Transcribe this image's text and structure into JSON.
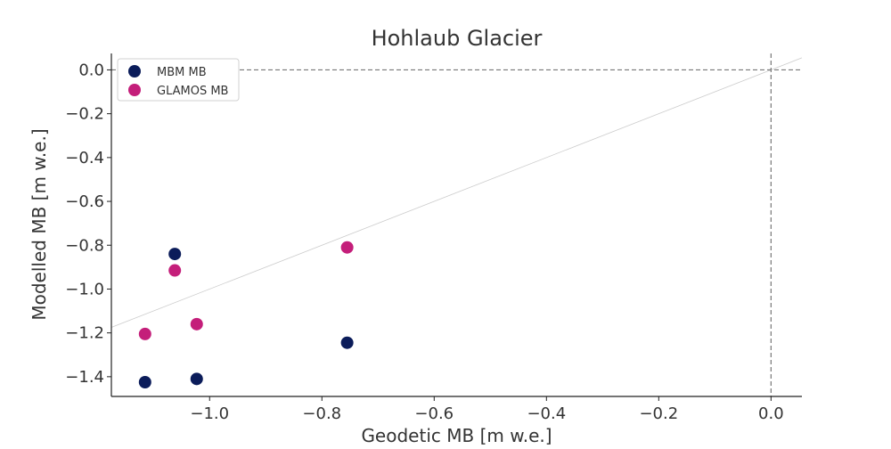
{
  "chart_data": {
    "type": "scatter",
    "title": "Hohlaub Glacier",
    "xlabel": "Geodetic MB [m w.e.]",
    "ylabel": "Modelled MB [m w.e.]",
    "xlim": [
      -1.175,
      0.055
    ],
    "ylim": [
      -1.49,
      0.075
    ],
    "xticks": [
      -1.0,
      -0.8,
      -0.6,
      -0.4,
      -0.2,
      0.0
    ],
    "xtick_labels": [
      "−1.0",
      "−0.8",
      "−0.6",
      "−0.4",
      "−0.2",
      "0.0"
    ],
    "yticks": [
      0.0,
      -0.2,
      -0.4,
      -0.6,
      -0.8,
      -1.0,
      -1.2,
      -1.4
    ],
    "ytick_labels": [
      "0.0",
      "−0.2",
      "−0.4",
      "−0.6",
      "−0.8",
      "−1.0",
      "−1.2",
      "−1.4"
    ],
    "grid": false,
    "legend_position": "top-left",
    "reference_lines": {
      "horizontal_y": 0.0,
      "vertical_x": 0.0,
      "diagonal": "1:1",
      "dashed_color": "#777777",
      "diagonal_color": "#cccccc"
    },
    "series": [
      {
        "name": "MBM MB",
        "color": "#0b1c5a",
        "points": [
          [
            -1.115,
            -1.425
          ],
          [
            -1.062,
            -0.84
          ],
          [
            -1.023,
            -1.41
          ],
          [
            -0.755,
            -1.245
          ]
        ]
      },
      {
        "name": "GLAMOS MB",
        "color": "#c41e7a",
        "points": [
          [
            -1.115,
            -1.205
          ],
          [
            -1.062,
            -0.915
          ],
          [
            -1.023,
            -1.16
          ],
          [
            -0.755,
            -0.81
          ]
        ]
      }
    ]
  }
}
